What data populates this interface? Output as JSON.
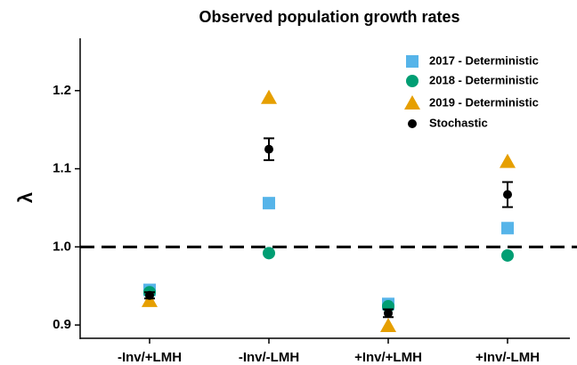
{
  "chart_data": {
    "type": "scatter",
    "title": "Observed population growth rates",
    "y_label": "λ",
    "categories": [
      "-Inv/+LMH",
      "-Inv/-LMH",
      "+Inv/+LMH",
      "+Inv/-LMH"
    ],
    "series": [
      {
        "name": "2017 - Deterministic",
        "color": "#56B4E9",
        "marker": "square",
        "values": [
          0.945,
          1.056,
          0.927,
          1.024
        ]
      },
      {
        "name": "2018 - Deterministic",
        "color": "#009E73",
        "marker": "circle",
        "values": [
          0.942,
          0.992,
          0.924,
          0.989
        ]
      },
      {
        "name": "2019 - Deterministic",
        "color": "#E69F00",
        "marker": "triangle",
        "values": [
          0.931,
          1.191,
          0.899,
          1.109
        ]
      },
      {
        "name": "Stochastic",
        "color": "#000000",
        "marker": "dot",
        "values": [
          0.938,
          1.125,
          0.915,
          1.067
        ],
        "errors": [
          0.004,
          0.014,
          0.005,
          0.016
        ]
      }
    ],
    "ylim": [
      0.883,
      1.267
    ],
    "yticks": [
      0.9,
      {
        "value": 1,
        "label": "1.0"
      },
      1.1,
      1.2
    ],
    "hline": 1,
    "legend": "top-right"
  }
}
